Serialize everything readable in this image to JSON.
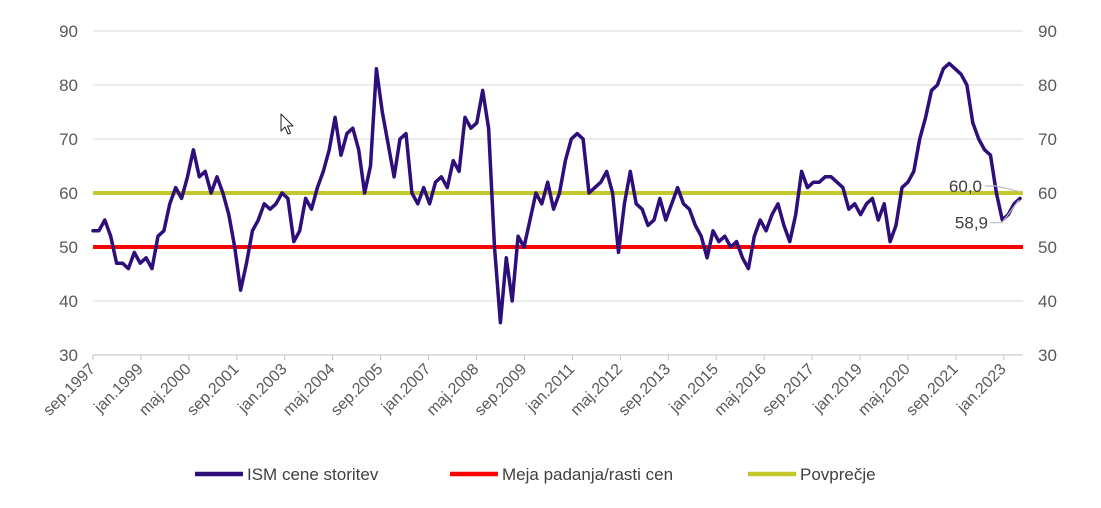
{
  "chart_data": {
    "type": "line",
    "title": "",
    "xlabel": "",
    "ylabel": "",
    "ylim": [
      30,
      90
    ],
    "y_ticks": [
      30,
      40,
      50,
      60,
      70,
      80,
      90
    ],
    "y_axes": [
      "left",
      "right"
    ],
    "grid": "horizontal",
    "legend_position": "bottom",
    "x_start": "1997-09",
    "x_end": "2023-12",
    "x_tick_labels": [
      "sep.1997",
      "jan.1999",
      "maj.2000",
      "sep.2001",
      "jan.2003",
      "maj.2004",
      "sep.2005",
      "jan.2007",
      "maj.2008",
      "sep.2009",
      "jan.2011",
      "maj.2012",
      "sep.2013",
      "jan.2015",
      "maj.2016",
      "sep.2017",
      "jan.2019",
      "maj.2020",
      "sep.2021",
      "jan.2023"
    ],
    "series": [
      {
        "name": "ISM cene storitev",
        "color": "#2e0e7a",
        "kind": "line",
        "points": [
          [
            "1997-09",
            53
          ],
          [
            "1997-11",
            53
          ],
          [
            "1998-01",
            55
          ],
          [
            "1998-03",
            52
          ],
          [
            "1998-05",
            47
          ],
          [
            "1998-07",
            47
          ],
          [
            "1998-09",
            46
          ],
          [
            "1998-11",
            49
          ],
          [
            "1999-01",
            47
          ],
          [
            "1999-03",
            48
          ],
          [
            "1999-05",
            46
          ],
          [
            "1999-07",
            52
          ],
          [
            "1999-09",
            53
          ],
          [
            "1999-11",
            58
          ],
          [
            "2000-01",
            61
          ],
          [
            "2000-03",
            59
          ],
          [
            "2000-05",
            63
          ],
          [
            "2000-07",
            68
          ],
          [
            "2000-09",
            63
          ],
          [
            "2000-11",
            64
          ],
          [
            "2001-01",
            60
          ],
          [
            "2001-03",
            63
          ],
          [
            "2001-05",
            60
          ],
          [
            "2001-07",
            56
          ],
          [
            "2001-09",
            50
          ],
          [
            "2001-11",
            42
          ],
          [
            "2002-01",
            47
          ],
          [
            "2002-03",
            53
          ],
          [
            "2002-05",
            55
          ],
          [
            "2002-07",
            58
          ],
          [
            "2002-09",
            57
          ],
          [
            "2002-11",
            58
          ],
          [
            "2003-01",
            60
          ],
          [
            "2003-03",
            59
          ],
          [
            "2003-05",
            51
          ],
          [
            "2003-07",
            53
          ],
          [
            "2003-09",
            59
          ],
          [
            "2003-11",
            57
          ],
          [
            "2004-01",
            61
          ],
          [
            "2004-03",
            64
          ],
          [
            "2004-05",
            68
          ],
          [
            "2004-07",
            74
          ],
          [
            "2004-09",
            67
          ],
          [
            "2004-11",
            71
          ],
          [
            "2005-01",
            72
          ],
          [
            "2005-03",
            68
          ],
          [
            "2005-05",
            60
          ],
          [
            "2005-07",
            65
          ],
          [
            "2005-09",
            83
          ],
          [
            "2005-11",
            75
          ],
          [
            "2006-01",
            69
          ],
          [
            "2006-03",
            63
          ],
          [
            "2006-05",
            70
          ],
          [
            "2006-07",
            71
          ],
          [
            "2006-09",
            60
          ],
          [
            "2006-11",
            58
          ],
          [
            "2007-01",
            61
          ],
          [
            "2007-03",
            58
          ],
          [
            "2007-05",
            62
          ],
          [
            "2007-07",
            63
          ],
          [
            "2007-09",
            61
          ],
          [
            "2007-11",
            66
          ],
          [
            "2008-01",
            64
          ],
          [
            "2008-03",
            74
          ],
          [
            "2008-05",
            72
          ],
          [
            "2008-07",
            73
          ],
          [
            "2008-09",
            79
          ],
          [
            "2008-11",
            72
          ],
          [
            "2009-01",
            50
          ],
          [
            "2009-03",
            36
          ],
          [
            "2009-05",
            48
          ],
          [
            "2009-07",
            40
          ],
          [
            "2009-09",
            52
          ],
          [
            "2009-11",
            50
          ],
          [
            "2010-01",
            55
          ],
          [
            "2010-03",
            60
          ],
          [
            "2010-05",
            58
          ],
          [
            "2010-07",
            62
          ],
          [
            "2010-09",
            57
          ],
          [
            "2010-11",
            60
          ],
          [
            "2011-01",
            66
          ],
          [
            "2011-03",
            70
          ],
          [
            "2011-05",
            71
          ],
          [
            "2011-07",
            70
          ],
          [
            "2011-09",
            60
          ],
          [
            "2011-11",
            61
          ],
          [
            "2012-01",
            62
          ],
          [
            "2012-03",
            64
          ],
          [
            "2012-05",
            60
          ],
          [
            "2012-07",
            49
          ],
          [
            "2012-09",
            58
          ],
          [
            "2012-11",
            64
          ],
          [
            "2013-01",
            58
          ],
          [
            "2013-03",
            57
          ],
          [
            "2013-05",
            54
          ],
          [
            "2013-07",
            55
          ],
          [
            "2013-09",
            59
          ],
          [
            "2013-11",
            55
          ],
          [
            "2014-01",
            58
          ],
          [
            "2014-03",
            61
          ],
          [
            "2014-05",
            58
          ],
          [
            "2014-07",
            57
          ],
          [
            "2014-09",
            54
          ],
          [
            "2014-11",
            52
          ],
          [
            "2015-01",
            48
          ],
          [
            "2015-03",
            53
          ],
          [
            "2015-05",
            51
          ],
          [
            "2015-07",
            52
          ],
          [
            "2015-09",
            50
          ],
          [
            "2015-11",
            51
          ],
          [
            "2016-01",
            48
          ],
          [
            "2016-03",
            46
          ],
          [
            "2016-05",
            52
          ],
          [
            "2016-07",
            55
          ],
          [
            "2016-09",
            53
          ],
          [
            "2016-11",
            56
          ],
          [
            "2017-01",
            58
          ],
          [
            "2017-03",
            54
          ],
          [
            "2017-05",
            51
          ],
          [
            "2017-07",
            56
          ],
          [
            "2017-09",
            64
          ],
          [
            "2017-11",
            61
          ],
          [
            "2018-01",
            62
          ],
          [
            "2018-03",
            62
          ],
          [
            "2018-05",
            63
          ],
          [
            "2018-07",
            63
          ],
          [
            "2018-09",
            62
          ],
          [
            "2018-11",
            61
          ],
          [
            "2019-01",
            57
          ],
          [
            "2019-03",
            58
          ],
          [
            "2019-05",
            56
          ],
          [
            "2019-07",
            58
          ],
          [
            "2019-09",
            59
          ],
          [
            "2019-11",
            55
          ],
          [
            "2020-01",
            58
          ],
          [
            "2020-03",
            51
          ],
          [
            "2020-05",
            54
          ],
          [
            "2020-07",
            61
          ],
          [
            "2020-09",
            62
          ],
          [
            "2020-11",
            64
          ],
          [
            "2021-01",
            70
          ],
          [
            "2021-03",
            74
          ],
          [
            "2021-05",
            79
          ],
          [
            "2021-07",
            80
          ],
          [
            "2021-09",
            83
          ],
          [
            "2021-11",
            84
          ],
          [
            "2022-01",
            83
          ],
          [
            "2022-03",
            82
          ],
          [
            "2022-05",
            80
          ],
          [
            "2022-07",
            73
          ],
          [
            "2022-09",
            70
          ],
          [
            "2022-11",
            68
          ],
          [
            "2023-01",
            67
          ],
          [
            "2023-03",
            60
          ],
          [
            "2023-05",
            55
          ],
          [
            "2023-07",
            56
          ],
          [
            "2023-09",
            58
          ],
          [
            "2023-11",
            59
          ]
        ]
      },
      {
        "name": "Meja padanja/rasti cen",
        "color": "#ff0000",
        "kind": "hline",
        "value": 50
      },
      {
        "name": "Povprečje",
        "color": "#c3c92c",
        "kind": "hline",
        "value": 60
      }
    ],
    "annotations": [
      {
        "text": "60,0",
        "value": 60.0
      },
      {
        "text": "58,9",
        "value": 58.9
      }
    ]
  }
}
